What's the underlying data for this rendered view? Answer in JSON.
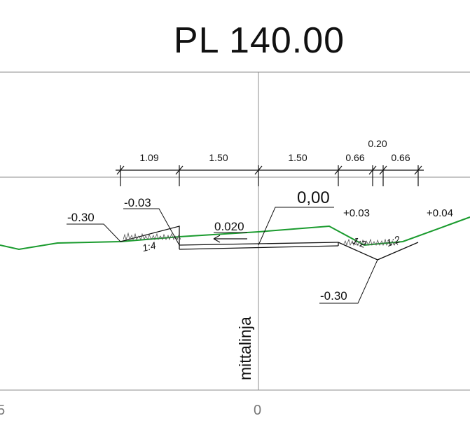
{
  "title": "PL 140.00",
  "dimensions": {
    "d1": "1.09",
    "d2": "1.50",
    "d3": "1.50",
    "d4": "0.66",
    "d5": "0.20",
    "d6": "0.66"
  },
  "levels": {
    "left_ditch": "-0.30",
    "left_shoulder": "-0.03",
    "slope": "0.020",
    "center": "0,00",
    "right_shoulder": "+0.03",
    "right_far": "+0.04",
    "right_ditch": "-0.30"
  },
  "slopes": {
    "left": "1:4",
    "right_inner": "1:2",
    "right_outer": "1:2"
  },
  "centerline_label": "mittalinja",
  "axis": {
    "left_tick": "5",
    "center_tick": "0"
  },
  "colors": {
    "ground": "#1a9b2e",
    "grid": "#8c8c8c",
    "ink": "#111111"
  }
}
